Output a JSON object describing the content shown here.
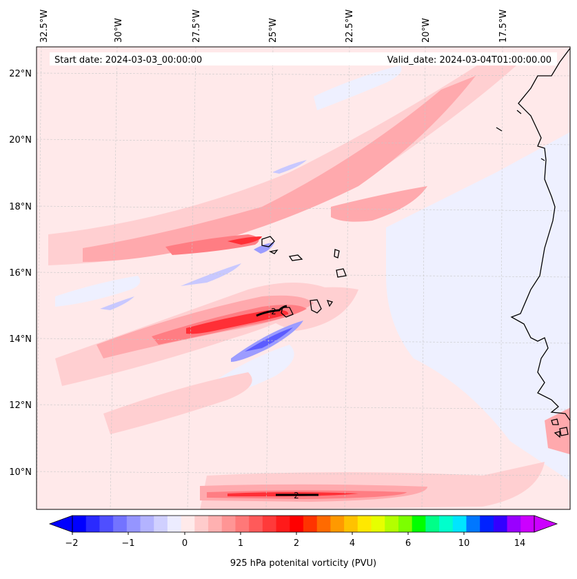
{
  "map": {
    "start_date": "Start date: 2024-03-03_00:00:00",
    "valid_date": "Valid_date: 2024-03-04T01:00:00.00",
    "lon_labels": [
      "32.5°W",
      "30°W",
      "27.5°W",
      "25°W",
      "22.5°W",
      "20°W",
      "17.5°W"
    ],
    "lat_labels": [
      "22°N",
      "20°N",
      "18°N",
      "16°N",
      "14°N",
      "12°N",
      "10°N"
    ],
    "contour_label": "2"
  },
  "colorbar": {
    "ticks": [
      "−2",
      "−1",
      "0",
      "1",
      "2",
      "4",
      "6",
      "10",
      "14"
    ],
    "label": "925 hPa potenital vorticity (PVU)",
    "colors": [
      "#0000ff",
      "#2a2aff",
      "#4f4fff",
      "#7373ff",
      "#9595ff",
      "#b3b3ff",
      "#d0d0ff",
      "#ececff",
      "#ffeaea",
      "#ffcccc",
      "#ffb1b1",
      "#ff9595",
      "#ff7878",
      "#ff5a5a",
      "#ff3a3a",
      "#ff1a1a",
      "#ff0000",
      "#ff3300",
      "#ff6a00",
      "#ff9900",
      "#ffc200",
      "#ffe800",
      "#e6ff00",
      "#b3ff00",
      "#7cff00",
      "#00ff00",
      "#00ff88",
      "#00ffcc",
      "#00e5ff",
      "#0077ff",
      "#0022ff",
      "#3300ff",
      "#9900ff",
      "#cc00ff"
    ]
  },
  "palette": {
    "background_field": "#ffe9ea",
    "weak_negative": "#eef0ff",
    "coast": "#000000"
  }
}
